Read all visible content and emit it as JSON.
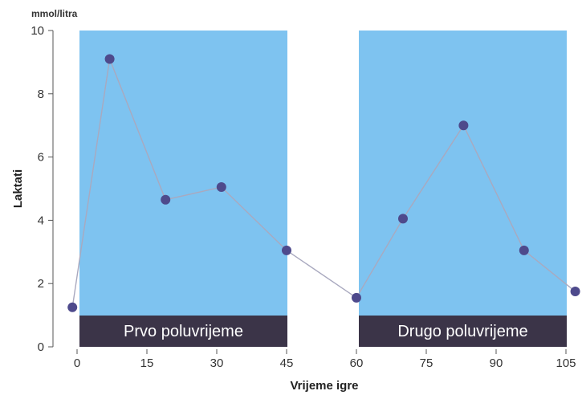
{
  "chart_data": {
    "type": "line",
    "ylabel": "Laktati",
    "yunit": "mmol/litra",
    "xlabel": "Vrijeme igre",
    "ylim": [
      0,
      10
    ],
    "xlim": [
      0,
      105
    ],
    "xticks": [
      0,
      15,
      30,
      45,
      60,
      75,
      90,
      105
    ],
    "yticks": [
      0,
      2,
      4,
      6,
      8,
      10
    ],
    "xtick_labels": [
      "0",
      "15",
      "30",
      "45",
      "60",
      "75",
      "90",
      "105"
    ],
    "ytick_labels": [
      "0",
      "2",
      "4",
      "6",
      "8",
      "10"
    ],
    "series": [
      {
        "x": [
          -1,
          7,
          19,
          31,
          45,
          60,
          70,
          83,
          96,
          107
        ],
        "values": [
          1.25,
          9.1,
          4.65,
          5.05,
          3.05,
          1.55,
          4.05,
          7.0,
          3.05,
          1.75
        ]
      }
    ],
    "periods": [
      {
        "label": "Prvo poluvrijeme",
        "start": 0,
        "end": 45
      },
      {
        "label": "Drugo poluvrijeme",
        "start": 60,
        "end": 105
      }
    ],
    "colors": {
      "period_fill": "#7ec3f0",
      "period_label_bg": "#3b3448",
      "line": "#a9a9bf",
      "marker": "#4e4a8c",
      "axis": "#555555"
    }
  }
}
